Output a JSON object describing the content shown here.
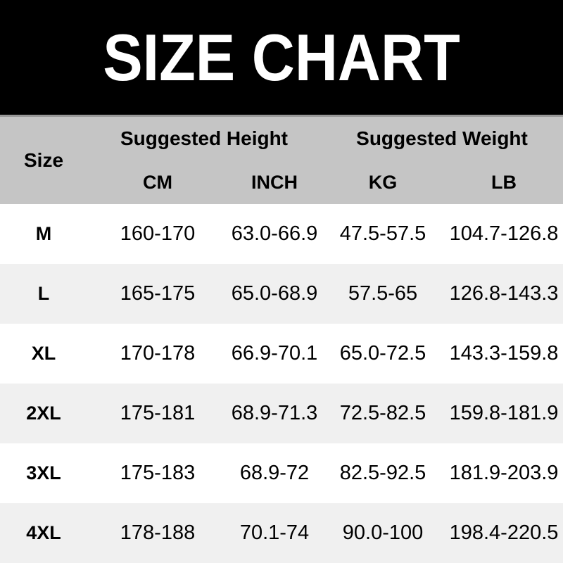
{
  "banner": {
    "title": "SIZE CHART",
    "bg_color": "#000000",
    "text_color": "#ffffff"
  },
  "table": {
    "size_label": "Size",
    "groups": [
      {
        "label": "Suggested Height"
      },
      {
        "label": "Suggested Weight"
      }
    ],
    "sub_headers": [
      "CM",
      "INCH",
      "KG",
      "LB"
    ],
    "rows": [
      {
        "size": "M",
        "cm": "160-170",
        "inch": "63.0-66.9",
        "kg": "47.5-57.5",
        "lb": "104.7-126.8"
      },
      {
        "size": "L",
        "cm": "165-175",
        "inch": "65.0-68.9",
        "kg": "57.5-65",
        "lb": "126.8-143.3"
      },
      {
        "size": "XL",
        "cm": "170-178",
        "inch": "66.9-70.1",
        "kg": "65.0-72.5",
        "lb": "143.3-159.8"
      },
      {
        "size": "2XL",
        "cm": "175-181",
        "inch": "68.9-71.3",
        "kg": "72.5-82.5",
        "lb": "159.8-181.9"
      },
      {
        "size": "3XL",
        "cm": "175-183",
        "inch": "68.9-72",
        "kg": "82.5-92.5",
        "lb": "181.9-203.9"
      },
      {
        "size": "4XL",
        "cm": "178-188",
        "inch": "70.1-74",
        "kg": "90.0-100",
        "lb": "198.4-220.5"
      }
    ],
    "colors": {
      "header_bg": "#c5c5c5",
      "separator": "#989898",
      "row_bg": "#ffffff",
      "alt_row_bg": "#f0f0f0",
      "text": "#000000"
    }
  },
  "chart_data": {
    "type": "table",
    "title": "SIZE CHART",
    "columns": [
      "Size",
      "Suggested Height CM",
      "Suggested Height INCH",
      "Suggested Weight KG",
      "Suggested Weight LB"
    ],
    "rows": [
      [
        "M",
        "160-170",
        "63.0-66.9",
        "47.5-57.5",
        "104.7-126.8"
      ],
      [
        "L",
        "165-175",
        "65.0-68.9",
        "57.5-65",
        "126.8-143.3"
      ],
      [
        "XL",
        "170-178",
        "66.9-70.1",
        "65.0-72.5",
        "143.3-159.8"
      ],
      [
        "2XL",
        "175-181",
        "68.9-71.3",
        "72.5-82.5",
        "159.8-181.9"
      ],
      [
        "3XL",
        "175-183",
        "68.9-72",
        "82.5-92.5",
        "181.9-203.9"
      ],
      [
        "4XL",
        "178-188",
        "70.1-74",
        "90.0-100",
        "198.4-220.5"
      ]
    ]
  }
}
